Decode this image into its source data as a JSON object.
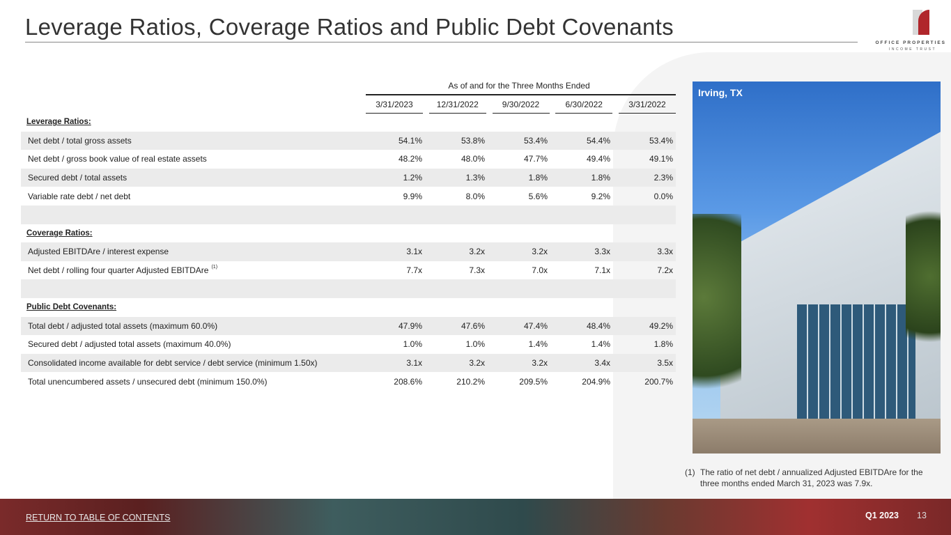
{
  "title": "Leverage Ratios, Coverage Ratios and Public Debt Covenants",
  "logo": {
    "line1": "OFFICE PROPERTIES",
    "line2": "INCOME TRUST"
  },
  "table": {
    "group_header": "As of and for the Three Months Ended",
    "columns": [
      "3/31/2023",
      "12/31/2022",
      "9/30/2022",
      "6/30/2022",
      "3/31/2022"
    ],
    "rows": [
      {
        "type": "section",
        "label": "Leverage Ratios:"
      },
      {
        "label": "Net debt / total gross assets",
        "values": [
          "54.1%",
          "53.8%",
          "53.4%",
          "54.4%",
          "53.4%"
        ]
      },
      {
        "label": "Net debt / gross book value of real estate assets",
        "values": [
          "48.2%",
          "48.0%",
          "47.7%",
          "49.4%",
          "49.1%"
        ]
      },
      {
        "label": "Secured debt / total assets",
        "values": [
          "1.2%",
          "1.3%",
          "1.8%",
          "1.8%",
          "2.3%"
        ]
      },
      {
        "label": "Variable rate debt / net debt",
        "values": [
          "9.9%",
          "8.0%",
          "5.6%",
          "9.2%",
          "0.0%"
        ]
      },
      {
        "type": "blank"
      },
      {
        "type": "section",
        "label": "Coverage Ratios:"
      },
      {
        "label": "Adjusted EBITDAre / interest expense",
        "values": [
          "3.1x",
          "3.2x",
          "3.2x",
          "3.3x",
          "3.3x"
        ]
      },
      {
        "label": "Net debt / rolling four quarter Adjusted EBITDAre",
        "note": "(1)",
        "values": [
          "7.7x",
          "7.3x",
          "7.0x",
          "7.1x",
          "7.2x"
        ]
      },
      {
        "type": "blank"
      },
      {
        "type": "section",
        "label": "Public Debt Covenants:"
      },
      {
        "label": "Total debt / adjusted total assets (maximum 60.0%)",
        "values": [
          "47.9%",
          "47.6%",
          "47.4%",
          "48.4%",
          "49.2%"
        ]
      },
      {
        "label": "Secured debt / adjusted total assets (maximum 40.0%)",
        "values": [
          "1.0%",
          "1.0%",
          "1.4%",
          "1.4%",
          "1.8%"
        ]
      },
      {
        "label": "Consolidated income available for debt service / debt service (minimum 1.50x)",
        "values": [
          "3.1x",
          "3.2x",
          "3.2x",
          "3.4x",
          "3.5x"
        ]
      },
      {
        "label": "Total unencumbered assets / unsecured debt (minimum 150.0%)",
        "values": [
          "208.6%",
          "210.2%",
          "209.5%",
          "204.9%",
          "200.7%"
        ]
      }
    ]
  },
  "photo": {
    "location": "Irving, TX"
  },
  "footnote": {
    "number": "(1)",
    "text": "The ratio of net debt / annualized Adjusted EBITDAre for the three months ended March 31, 2023 was 7.9x."
  },
  "footer": {
    "toc_link": "RETURN TO TABLE OF CONTENTS",
    "period": "Q1 2023",
    "page": "13"
  },
  "colors": {
    "brand_red": "#b0262b",
    "row_shade": "#ebebeb"
  }
}
